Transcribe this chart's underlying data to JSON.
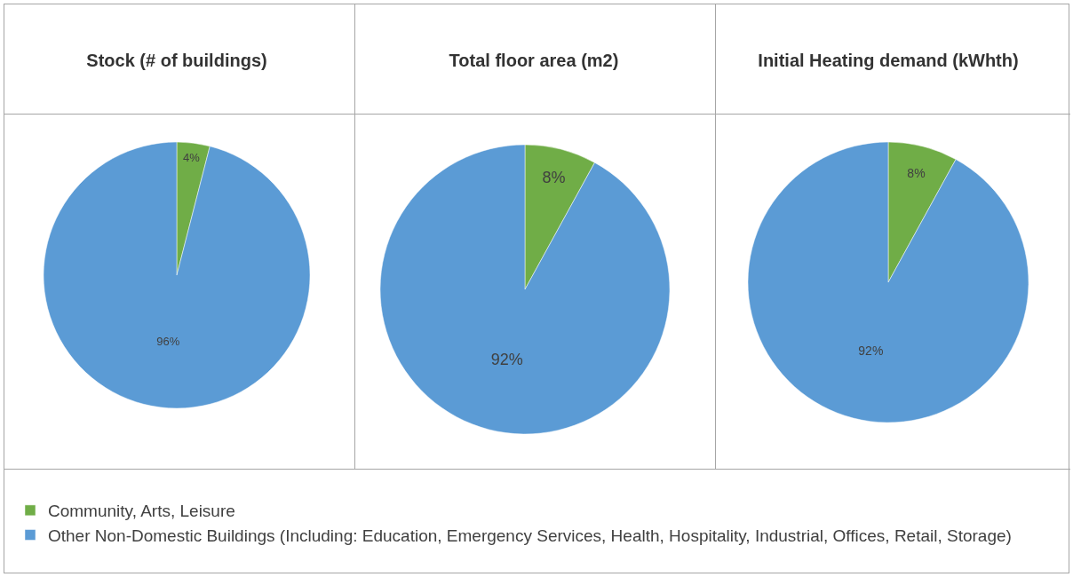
{
  "chart_data": [
    {
      "type": "pie",
      "title": "Stock (# of buildings)",
      "categories": [
        "Community, Arts, Leisure",
        "Other Non-Domestic Buildings (Including: Education, Emergency Services, Health, Hospitality, Industrial, Offices, Retail, Storage)"
      ],
      "values": [
        4,
        96
      ],
      "value_labels": [
        "4%",
        "96%"
      ],
      "colors": [
        "#70ad47",
        "#5b9bd5"
      ],
      "legend": "bottom"
    },
    {
      "type": "pie",
      "title": "Total floor area (m2)",
      "values": [
        8,
        92
      ],
      "value_labels": [
        "8%",
        "92%"
      ],
      "colors": [
        "#70ad47",
        "#5b9bd5"
      ]
    },
    {
      "type": "pie",
      "title": "Initial Heating demand (kWhth)",
      "values": [
        8,
        92
      ],
      "value_labels": [
        "8%",
        "92%"
      ],
      "colors": [
        "#70ad47",
        "#5b9bd5"
      ]
    }
  ]
}
